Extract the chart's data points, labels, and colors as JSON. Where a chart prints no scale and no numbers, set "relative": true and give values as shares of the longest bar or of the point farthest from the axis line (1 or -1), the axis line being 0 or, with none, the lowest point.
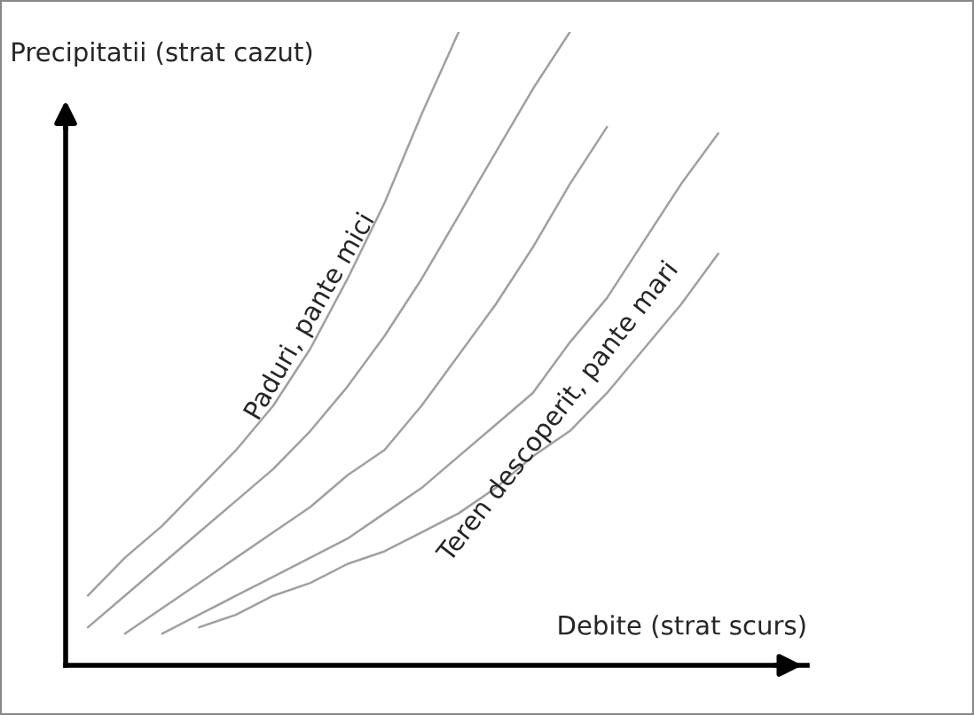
{
  "chart_data": {
    "type": "line",
    "relative": true,
    "xlabel": "Debite (strat scurs)",
    "ylabel": "Precipitatii (strat cazut)",
    "legend": false,
    "marker": "none",
    "line_style": "solid",
    "categories": [
      null,
      null,
      null,
      null,
      null,
      null,
      null,
      null,
      null,
      null,
      null,
      null,
      null,
      null,
      null,
      null,
      null,
      null
    ],
    "series": [
      {
        "color": "#a0a0a0",
        "values": [
          0.11,
          0.17,
          0.22,
          0.28,
          0.34,
          0.41,
          0.5,
          0.61,
          0.73,
          0.87,
          1.0,
          null,
          null,
          null,
          null,
          null,
          null,
          null
        ]
      },
      {
        "color": "#a0a0a0",
        "values": [
          0.06,
          0.11,
          0.16,
          0.21,
          0.26,
          0.31,
          0.37,
          0.44,
          0.52,
          0.61,
          0.71,
          0.81,
          0.91,
          1.0,
          null,
          null,
          null,
          null
        ]
      },
      {
        "color": "#a0a0a0",
        "values": [
          null,
          0.05,
          0.09,
          0.13,
          0.17,
          0.21,
          0.25,
          0.3,
          0.34,
          0.41,
          0.49,
          0.57,
          0.66,
          0.76,
          0.85,
          null,
          null,
          null
        ]
      },
      {
        "color": "#a0a0a0",
        "values": [
          null,
          null,
          0.05,
          0.08,
          0.11,
          0.14,
          0.17,
          0.2,
          0.24,
          0.28,
          0.33,
          0.38,
          0.43,
          0.51,
          0.58,
          0.67,
          0.76,
          0.84
        ]
      },
      {
        "color": "#a0a0a0",
        "values": [
          null,
          null,
          null,
          0.06,
          0.08,
          0.11,
          0.13,
          0.16,
          0.18,
          0.21,
          0.24,
          0.28,
          0.33,
          0.37,
          0.43,
          0.5,
          0.57,
          0.65
        ]
      }
    ],
    "annotations": [
      "Paduri, pante mici",
      "Teren descoperit, pante mari"
    ]
  }
}
